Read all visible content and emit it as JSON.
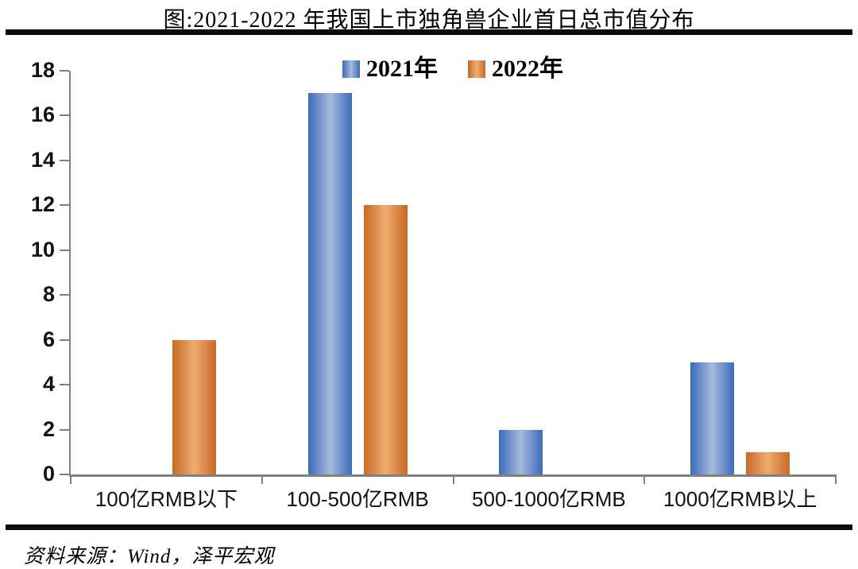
{
  "figure": {
    "title": "图:2021-2022 年我国上市独角兽企业首日总市值分布",
    "source": "资料来源：Wind，泽平宏观"
  },
  "chart_data": {
    "type": "bar",
    "title": "图:2021-2022 年我国上市独角兽企业首日总市值分布",
    "categories": [
      "100亿RMB以下",
      "100-500亿RMB",
      "500-1000亿RMB",
      "1000亿RMB以上"
    ],
    "series": [
      {
        "name": "2021年",
        "values": [
          0,
          17,
          2,
          5
        ],
        "color": "#4472C4",
        "gradient": [
          "#3C6ABD",
          "#A7BADB",
          "#3C6ABD"
        ]
      },
      {
        "name": "2022年",
        "values": [
          6,
          12,
          0,
          1
        ],
        "color": "#ED7D31",
        "gradient": [
          "#C96A24",
          "#EFAC72",
          "#C96A24"
        ]
      }
    ],
    "xlabel": "",
    "ylabel": "",
    "ylim": [
      0,
      18
    ],
    "ytick_step": 2,
    "yticks": [
      0,
      2,
      4,
      6,
      8,
      10,
      12,
      14,
      16,
      18
    ],
    "legend_position": "top-center",
    "grid": false,
    "axis_color": "#808080",
    "source": "资料来源：Wind，泽平宏观"
  }
}
